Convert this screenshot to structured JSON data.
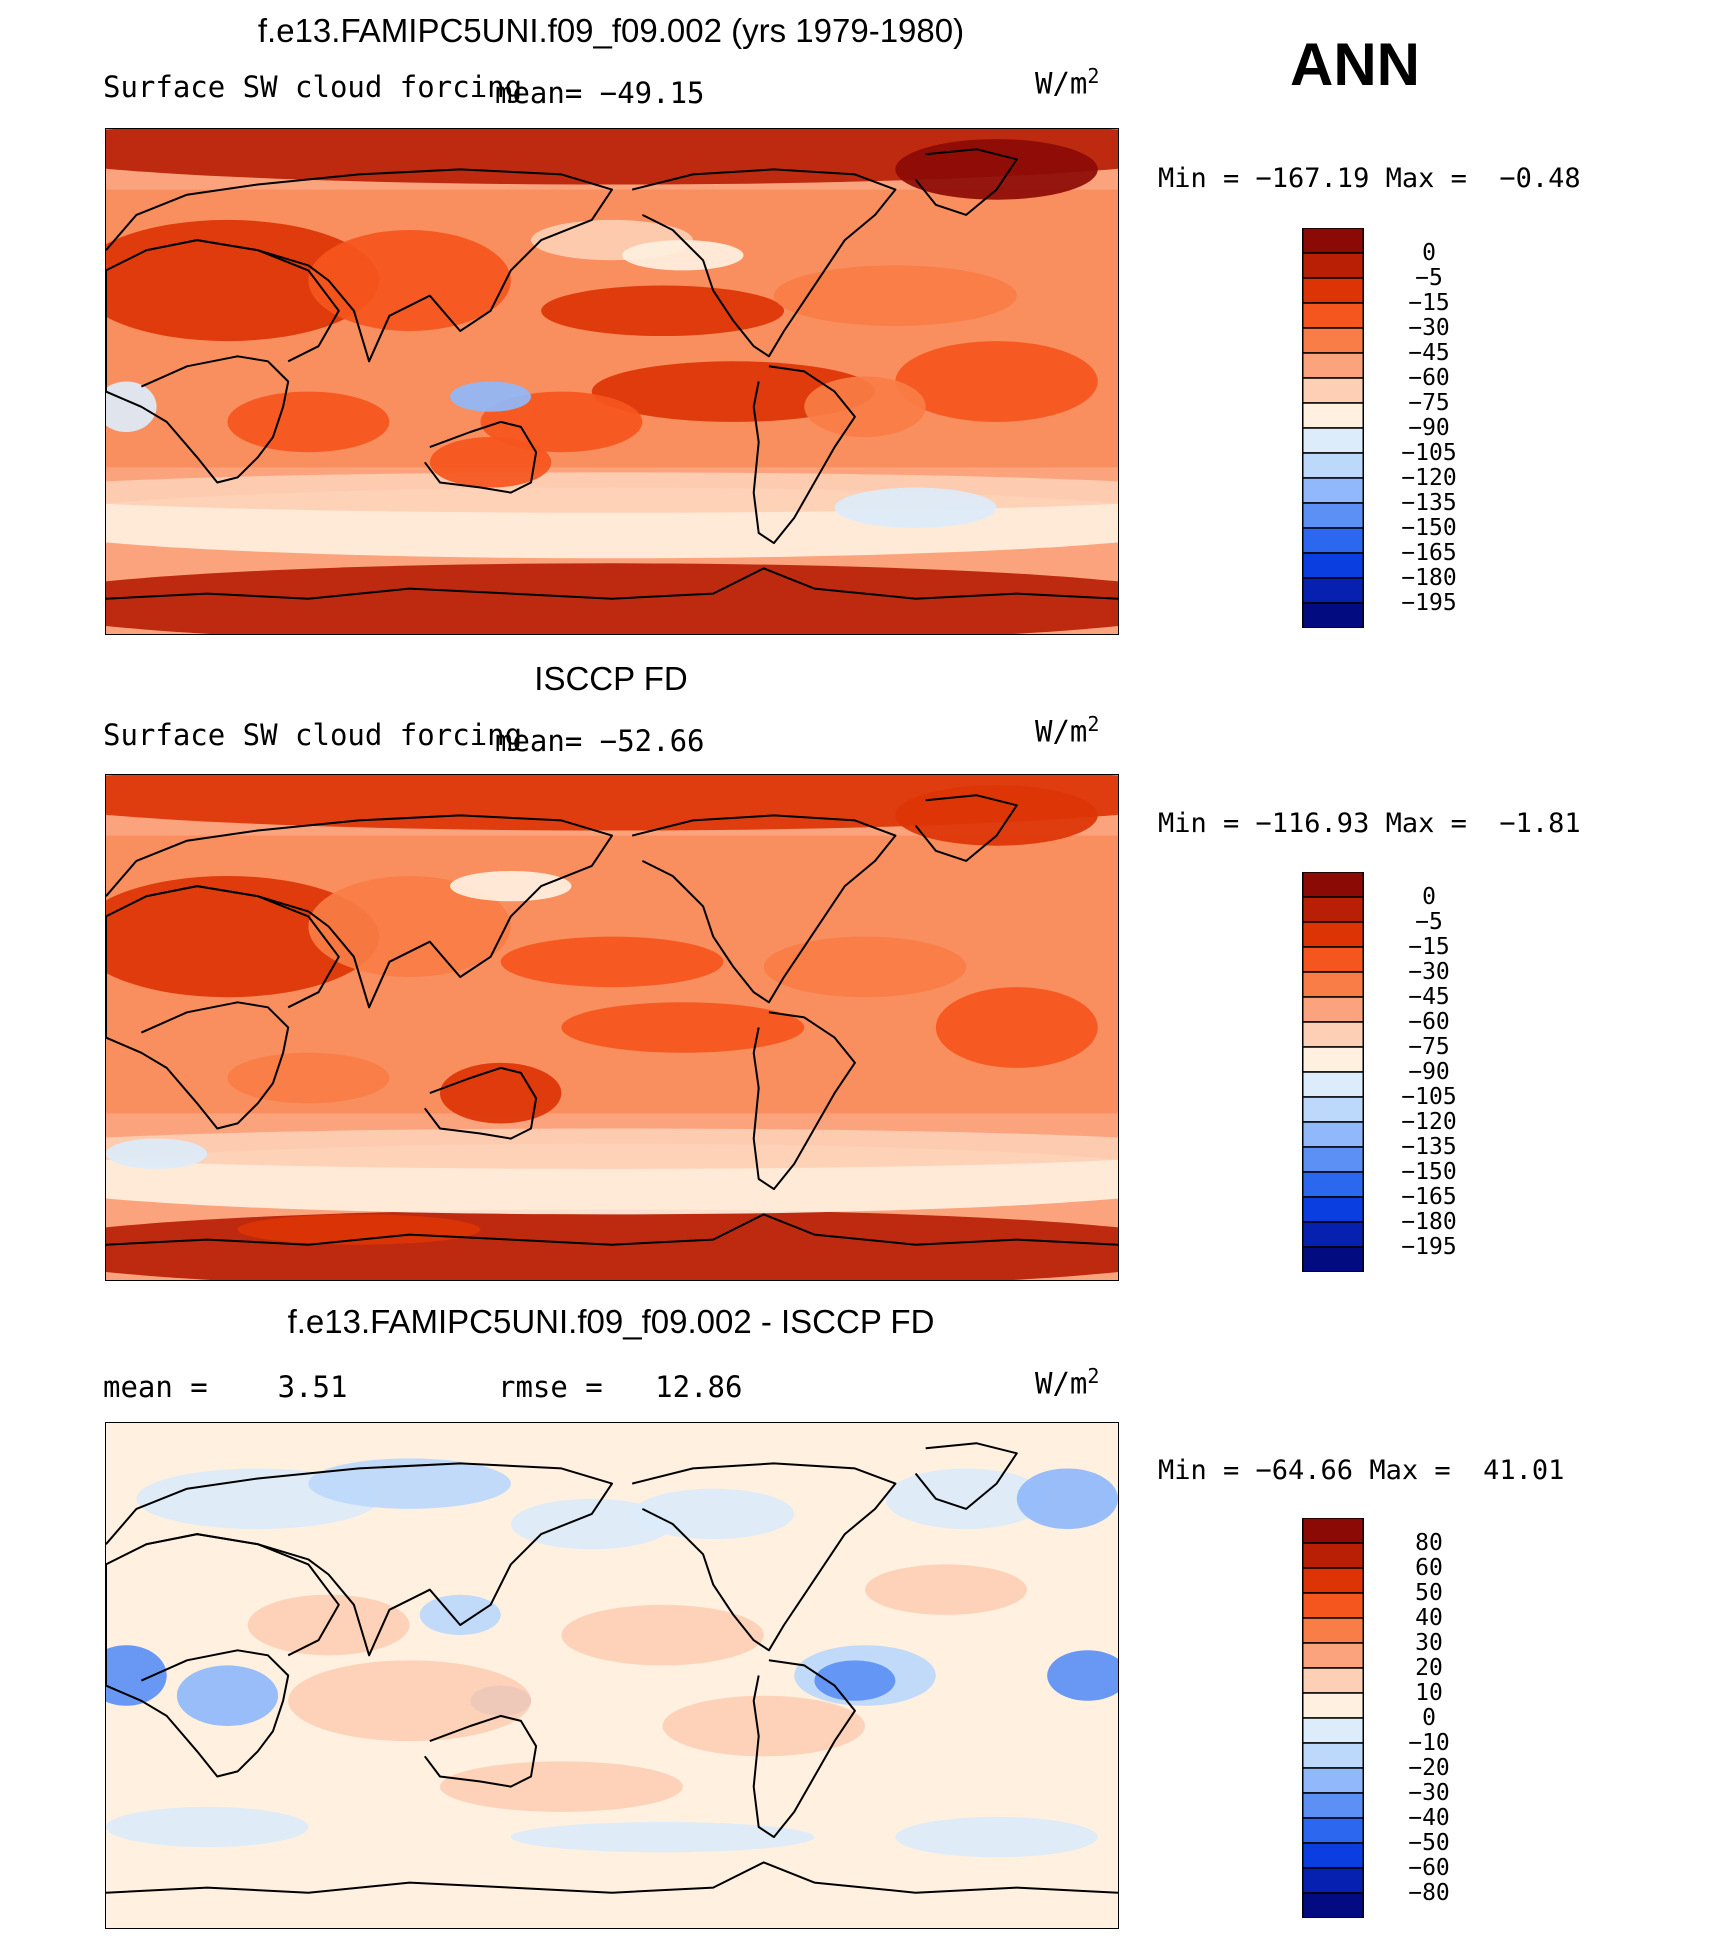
{
  "header": {
    "season": "ANN"
  },
  "panels": [
    {
      "title": "f.e13.FAMIPC5UNI.f09_f09.002 (yrs 1979-1980)",
      "left_label": "Surface SW cloud forcing",
      "mid_label": "mean= −49.15",
      "units_base": "W/m",
      "units_exp": "2",
      "range_label": "Min = −167.19 Max =  −0.48",
      "map_name": "model-map",
      "scheme": "model"
    },
    {
      "title": "ISCCP FD",
      "left_label": "Surface SW cloud forcing",
      "mid_label": "mean= −52.66",
      "units_base": "W/m",
      "units_exp": "2",
      "range_label": "Min = −116.93 Max =  −1.81",
      "map_name": "obs-map",
      "scheme": "obs"
    },
    {
      "title": "f.e13.FAMIPC5UNI.f09_f09.002 - ISCCP FD",
      "left_label": "mean =    3.51",
      "mid_label": "rmse =   12.86",
      "units_base": "W/m",
      "units_exp": "2",
      "range_label": "Min = −64.66 Max =  41.01",
      "map_name": "diff-map",
      "scheme": "diff"
    }
  ],
  "chart_data": [
    {
      "type": "heatmap",
      "title": "f.e13.FAMIPC5UNI.f09_f09.002 (yrs 1979-1980)",
      "subtitle": "Surface SW cloud forcing",
      "units": "W/m2",
      "mean": -49.15,
      "min": -167.19,
      "max": -0.48,
      "colorbar": {
        "levels": [
          "0",
          "−5",
          "−15",
          "−30",
          "−45",
          "−60",
          "−75",
          "−90",
          "−105",
          "−120",
          "−135",
          "−150",
          "−165",
          "−180",
          "−195"
        ],
        "colors": [
          "#8c0a05",
          "#b81f05",
          "#dc3405",
          "#f5561d",
          "#f87d46",
          "#fba37c",
          "#fdcfb4",
          "#fff0e0",
          "#dcecfa",
          "#bcd8fb",
          "#90b8fb",
          "#5c90f5",
          "#2c68ef",
          "#0a3ee0",
          "#0620b0",
          "#020c80"
        ]
      }
    },
    {
      "type": "heatmap",
      "title": "ISCCP FD",
      "subtitle": "Surface SW cloud forcing",
      "units": "W/m2",
      "mean": -52.66,
      "min": -116.93,
      "max": -1.81,
      "colorbar": {
        "levels": [
          "0",
          "−5",
          "−15",
          "−30",
          "−45",
          "−60",
          "−75",
          "−90",
          "−105",
          "−120",
          "−135",
          "−150",
          "−165",
          "−180",
          "−195"
        ],
        "colors": [
          "#8c0a05",
          "#b81f05",
          "#dc3405",
          "#f5561d",
          "#f87d46",
          "#fba37c",
          "#fdcfb4",
          "#fff0e0",
          "#dcecfa",
          "#bcd8fb",
          "#90b8fb",
          "#5c90f5",
          "#2c68ef",
          "#0a3ee0",
          "#0620b0",
          "#020c80"
        ]
      }
    },
    {
      "type": "heatmap",
      "title": "f.e13.FAMIPC5UNI.f09_f09.002 - ISCCP FD",
      "units": "W/m2",
      "mean": 3.51,
      "rmse": 12.86,
      "min": -64.66,
      "max": 41.01,
      "colorbar": {
        "levels": [
          "80",
          "60",
          "50",
          "40",
          "30",
          "20",
          "10",
          "0",
          "−10",
          "−20",
          "−30",
          "−40",
          "−50",
          "−60",
          "−80"
        ],
        "colors": [
          "#8c0a05",
          "#b81f05",
          "#dc3405",
          "#f5561d",
          "#f87d46",
          "#fba37c",
          "#fdcfb4",
          "#fff0e0",
          "#dcecfa",
          "#bcd8fb",
          "#90b8fb",
          "#5c90f5",
          "#2c68ef",
          "#0a3ee0",
          "#0620b0",
          "#020c80"
        ]
      }
    }
  ]
}
